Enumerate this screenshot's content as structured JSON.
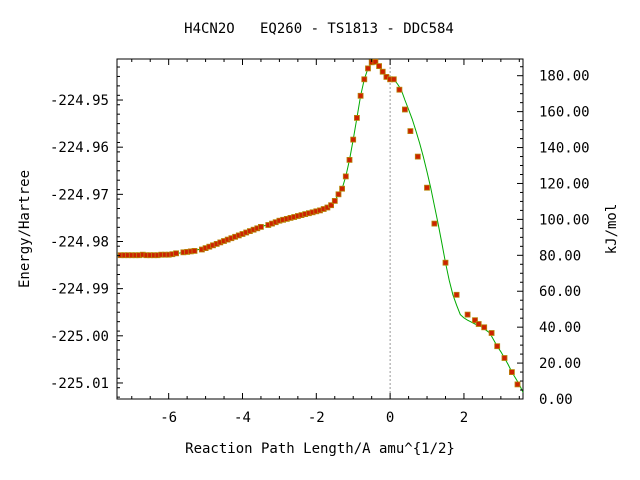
{
  "chart_data": {
    "type": "line",
    "title": "H4CN2O   EQ260 - TS1813 - DDC584",
    "xlabel": "Reaction Path Length/A amu^{1/2}",
    "ylabel": "Energy/Hartree",
    "y2label": "kJ/mol",
    "xlim": [
      -7.4,
      3.6
    ],
    "ylim": [
      -225.0134,
      -224.9413
    ],
    "y2lim": [
      0,
      189.3
    ],
    "x_ticks": [
      -6,
      -4,
      -2,
      0,
      2
    ],
    "x_tick_labels": [
      "-6",
      "-4",
      "-2",
      "0",
      "2"
    ],
    "y_ticks": [
      -224.95,
      -224.96,
      -224.97,
      -224.98,
      -224.99,
      -225.0,
      -225.01
    ],
    "y_tick_labels": [
      "-224.95",
      "-224.96",
      "-224.97",
      "-224.98",
      "-224.99",
      "-225.00",
      "-225.01"
    ],
    "y2_ticks": [
      0,
      20,
      40,
      60,
      80,
      100,
      120,
      140,
      160,
      180
    ],
    "y2_tick_labels": [
      "0.00",
      "20.00",
      "40.00",
      "60.00",
      "80.00",
      "100.00",
      "120.00",
      "140.00",
      "160.00",
      "180.00"
    ],
    "ts_x": 0,
    "colors": {
      "line": "#00aa00",
      "marker": "#cc2200",
      "marker_edge": "#b8860b",
      "ts_line": "#999999"
    },
    "series": [
      {
        "x": [
          -7.3,
          -7.2,
          -7.1,
          -7.0,
          -6.9,
          -6.8,
          -6.7,
          -6.6,
          -6.5,
          -6.4,
          -6.3,
          -6.2,
          -6.1,
          -6.0,
          -5.9,
          -5.8,
          -5.6,
          -5.5,
          -5.4,
          -5.3,
          -5.1,
          -5.0,
          -4.9,
          -4.8,
          -4.7,
          -4.6,
          -4.5,
          -4.4,
          -4.3,
          -4.2,
          -4.1,
          -4.0,
          -3.9,
          -3.8,
          -3.7,
          -3.6,
          -3.5,
          -3.3,
          -3.2,
          -3.1,
          -3.0,
          -2.9,
          -2.8,
          -2.7,
          -2.6,
          -2.5,
          -2.4,
          -2.3,
          -2.2,
          -2.1,
          -2.0,
          -1.9,
          -1.8,
          -1.7,
          -1.6,
          -1.5,
          -1.4,
          -1.3,
          -1.2,
          -1.1,
          -1.0,
          -0.9,
          -0.8,
          -0.7,
          -0.6,
          -0.5,
          -0.4,
          -0.3,
          -0.2,
          -0.1,
          0.0,
          0.1,
          0.25,
          0.4,
          0.55,
          0.75,
          1.0,
          1.2,
          1.5,
          1.8,
          2.1,
          2.3,
          2.4,
          2.55,
          2.75,
          2.9,
          3.1,
          3.3,
          3.45
        ],
        "y": [
          -224.9829,
          -224.9829,
          -224.9829,
          -224.9829,
          -224.9829,
          -224.9829,
          -224.9828,
          -224.9829,
          -224.9829,
          -224.9829,
          -224.9829,
          -224.9828,
          -224.9828,
          -224.9828,
          -224.9827,
          -224.9825,
          -224.9823,
          -224.9822,
          -224.9821,
          -224.982,
          -224.9817,
          -224.9814,
          -224.9811,
          -224.9808,
          -224.9805,
          -224.9802,
          -224.9799,
          -224.9796,
          -224.9793,
          -224.979,
          -224.9787,
          -224.9784,
          -224.9781,
          -224.9778,
          -224.9775,
          -224.9772,
          -224.9769,
          -224.9765,
          -224.9762,
          -224.9759,
          -224.9756,
          -224.9754,
          -224.9752,
          -224.975,
          -224.9748,
          -224.9746,
          -224.9744,
          -224.9742,
          -224.974,
          -224.9738,
          -224.9736,
          -224.9734,
          -224.9731,
          -224.9728,
          -224.9723,
          -224.9714,
          -224.97,
          -224.9688,
          -224.9662,
          -224.9627,
          -224.9584,
          -224.9538,
          -224.9491,
          -224.9456,
          -224.9433,
          -224.942,
          -224.9419,
          -224.9428,
          -224.944,
          -224.9451,
          -224.9456,
          -224.9456,
          -224.9478,
          -224.952,
          -224.9566,
          -224.962,
          -224.9686,
          -224.9762,
          -224.9845,
          -224.9913,
          -224.9955,
          -224.9967,
          -224.9975,
          -224.9982,
          -224.9994,
          -225.0022,
          -225.0047,
          -225.0077,
          -225.0103
        ]
      }
    ],
    "line_curve": {
      "x": [
        -7.4,
        -7.0,
        -6.5,
        -6.0,
        -5.5,
        -5.0,
        -4.5,
        -4.0,
        -3.5,
        -3.0,
        -2.5,
        -2.0,
        -1.8,
        -1.6,
        -1.5,
        -1.4,
        -1.3,
        -1.2,
        -1.1,
        -1.0,
        -0.9,
        -0.8,
        -0.7,
        -0.6,
        -0.5,
        -0.4,
        -0.3,
        -0.2,
        -0.1,
        0.0,
        0.1,
        0.2,
        0.3,
        0.4,
        0.5,
        0.6,
        0.7,
        0.8,
        0.9,
        1.0,
        1.1,
        1.2,
        1.3,
        1.4,
        1.5,
        1.6,
        1.7,
        1.8,
        1.9,
        2.0,
        2.1,
        2.2,
        2.3,
        2.4,
        2.5,
        2.6,
        2.7,
        2.8,
        2.9,
        3.0,
        3.1,
        3.2,
        3.3,
        3.4,
        3.5,
        3.6
      ],
      "y": [
        -224.9829,
        -224.9829,
        -224.9829,
        -224.9828,
        -224.9822,
        -224.9814,
        -224.9799,
        -224.9784,
        -224.9769,
        -224.9756,
        -224.9746,
        -224.9736,
        -224.9731,
        -224.9723,
        -224.9714,
        -224.97,
        -224.9688,
        -224.9662,
        -224.9627,
        -224.9584,
        -224.9538,
        -224.9491,
        -224.9456,
        -224.9433,
        -224.942,
        -224.9419,
        -224.9428,
        -224.944,
        -224.9451,
        -224.9456,
        -224.9456,
        -224.9466,
        -224.9478,
        -224.95,
        -224.952,
        -224.9541,
        -224.9566,
        -224.9592,
        -224.962,
        -224.9652,
        -224.9686,
        -224.9724,
        -224.9762,
        -224.9803,
        -224.9845,
        -224.9882,
        -224.9913,
        -224.9935,
        -224.9955,
        -224.9962,
        -224.9967,
        -224.9971,
        -224.9975,
        -224.9978,
        -224.9982,
        -224.9988,
        -224.9994,
        -225.0008,
        -225.0022,
        -225.0034,
        -225.0047,
        -225.0061,
        -225.0077,
        -225.009,
        -225.0103,
        -225.012
      ]
    }
  }
}
